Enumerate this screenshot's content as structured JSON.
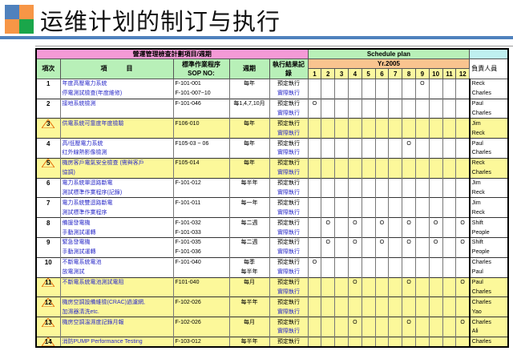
{
  "title": "运维计划的制订与执行",
  "table": {
    "caption": "營運管理檢查計劃項目/週期",
    "schedule_caption": "Schedule plan",
    "year": "Yr.2005",
    "headers": {
      "no": "項次",
      "item": "項　　　目",
      "sop": "標準作業程序 SOP NO:",
      "cycle": "週期",
      "result": "執行結果記錄",
      "owner": "負責人員"
    },
    "months": [
      "1",
      "2",
      "3",
      "4",
      "5",
      "6",
      "7",
      "8",
      "9",
      "10",
      "11",
      "12"
    ],
    "mark": "O",
    "items": [
      {
        "no": "1",
        "warn": false,
        "hl": false,
        "lines": [
          {
            "name": "年度高壓電力系統",
            "sop": "F-101-001",
            "cycle": "每年",
            "result": "預定執行",
            "months": [
              9
            ],
            "owner": "Reck"
          },
          {
            "name": "停電測試檢查(年度維修)",
            "sop": "F-101-007~10",
            "cycle": "",
            "result": "實際執行",
            "months": [],
            "owner": "Charles"
          }
        ]
      },
      {
        "no": "2",
        "warn": false,
        "hl": false,
        "lines": [
          {
            "name": "接地系統檢測",
            "sop": "F-101-046",
            "cycle": "每1,4,7,10月",
            "result": "預定執行",
            "months": [
              1
            ],
            "owner": "Paul"
          },
          {
            "name": "",
            "sop": "",
            "cycle": "",
            "result": "實際執行",
            "months": [],
            "owner": "Charles"
          }
        ]
      },
      {
        "no": "3",
        "warn": true,
        "hl": true,
        "lines": [
          {
            "name": "供電系統可靠度年度檢驗",
            "sop": "F106-010",
            "cycle": "每年",
            "result": "預定執行",
            "months": [],
            "owner": "Jim"
          },
          {
            "name": "",
            "sop": "",
            "cycle": "",
            "result": "實際執行",
            "months": [],
            "owner": "Reck"
          }
        ]
      },
      {
        "no": "4",
        "warn": false,
        "hl": false,
        "lines": [
          {
            "name": "高/低壓電力系統",
            "sop": "F105-03 ~ 06",
            "cycle": "每年",
            "result": "預定執行",
            "months": [
              8
            ],
            "owner": "Paul"
          },
          {
            "name": "红外線熱影像檢測",
            "sop": "",
            "cycle": "",
            "result": "實際執行",
            "months": [],
            "owner": "Charles"
          }
        ]
      },
      {
        "no": "5",
        "warn": true,
        "hl": true,
        "lines": [
          {
            "name": "機房客戶電氣安全檢查 (需與客戶",
            "sop": "F105-014",
            "cycle": "每年",
            "result": "預定執行",
            "months": [],
            "owner": "Reck"
          },
          {
            "name": "協調)",
            "sop": "",
            "cycle": "",
            "result": "實際執行",
            "months": [],
            "owner": "Charles"
          }
        ]
      },
      {
        "no": "6",
        "warn": false,
        "hl": false,
        "lines": [
          {
            "name": "電力系統單迴路斷電",
            "sop": "F-101-012",
            "cycle": "每半年",
            "result": "預定執行",
            "months": [],
            "owner": "Jim"
          },
          {
            "name": "測試標準作業程序(記錄)",
            "sop": "",
            "cycle": "",
            "result": "實際執行",
            "months": [],
            "owner": "Reck"
          }
        ]
      },
      {
        "no": "7",
        "warn": false,
        "hl": false,
        "lines": [
          {
            "name": "電力系統雙迴路斷電",
            "sop": "F-101-011",
            "cycle": "每一年",
            "result": "預定執行",
            "months": [],
            "owner": "Jim"
          },
          {
            "name": "測試標準作業程序",
            "sop": "",
            "cycle": "",
            "result": "實際執行",
            "months": [],
            "owner": "Reck"
          }
        ]
      },
      {
        "no": "8",
        "warn": false,
        "hl": false,
        "lines": [
          {
            "name": "備援發電機",
            "sop": "F-101-032",
            "cycle": "每二週",
            "result": "預定執行",
            "months": [
              2,
              4,
              6,
              8,
              10,
              12
            ],
            "owner": "Shift"
          },
          {
            "name": "手動測試運轉",
            "sop": "F-101-033",
            "cycle": "",
            "result": "實際執行",
            "months": [],
            "owner": "People"
          }
        ]
      },
      {
        "no": "9",
        "warn": false,
        "hl": false,
        "lines": [
          {
            "name": "緊急發電機",
            "sop": "F-101-035",
            "cycle": "每二週",
            "result": "預定執行",
            "months": [
              2,
              4,
              6,
              8,
              10,
              12
            ],
            "owner": "Shift"
          },
          {
            "name": "手動測試運轉",
            "sop": "F-101-036",
            "cycle": "",
            "result": "實際執行",
            "months": [],
            "owner": "People"
          }
        ]
      },
      {
        "no": "10",
        "warn": false,
        "hl": false,
        "lines": [
          {
            "name": "不斷電系統電池",
            "sop": "F-101-040",
            "cycle": "每季",
            "result": "預定執行",
            "months": [
              1
            ],
            "owner": "Charles"
          },
          {
            "name": "放電測試",
            "sop": "",
            "cycle": "每半年",
            "result": "實際執行",
            "months": [],
            "owner": "Paul"
          }
        ]
      },
      {
        "no": "11",
        "warn": true,
        "hl": true,
        "lines": [
          {
            "name": "不斷電系統電池測試電阻",
            "sop": "F101-040",
            "cycle": "每月",
            "result": "預定執行",
            "months": [
              4,
              8,
              12
            ],
            "owner": "Paul"
          },
          {
            "name": "",
            "sop": "",
            "cycle": "",
            "result": "實際執行",
            "months": [],
            "owner": "Charles"
          }
        ]
      },
      {
        "no": "12",
        "warn": true,
        "hl": true,
        "lines": [
          {
            "name": "機房空調設備維檢(CRAC)過濾網,",
            "sop": "F-102-026",
            "cycle": "每半年",
            "result": "預定執行",
            "months": [],
            "owner": "Charles"
          },
          {
            "name": "加濕器清洗etc.",
            "sop": "",
            "cycle": "",
            "result": "實際執行",
            "months": [],
            "owner": "Yao"
          }
        ]
      },
      {
        "no": "13",
        "warn": true,
        "hl": true,
        "lines": [
          {
            "name": "機房空調溫濕度記錄月報",
            "sop": "F-102-026",
            "cycle": "每月",
            "result": "預定執行",
            "months": [
              4,
              8,
              12
            ],
            "owner": "Charles"
          },
          {
            "name": "",
            "sop": "",
            "cycle": "",
            "result": "實際執行",
            "months": [],
            "owner": "Ali"
          }
        ]
      },
      {
        "no": "14",
        "warn": true,
        "hl": true,
        "lines": [
          {
            "name": "消防PUMP Performance Testing",
            "sop": "F-103-012",
            "cycle": "每半年",
            "result": "預定執行",
            "months": [],
            "owner": "Charles"
          }
        ]
      }
    ]
  },
  "colors": {
    "accent": "#4f81bd",
    "highlight": "#fcf89a",
    "link_text": "#2b2bc8"
  }
}
